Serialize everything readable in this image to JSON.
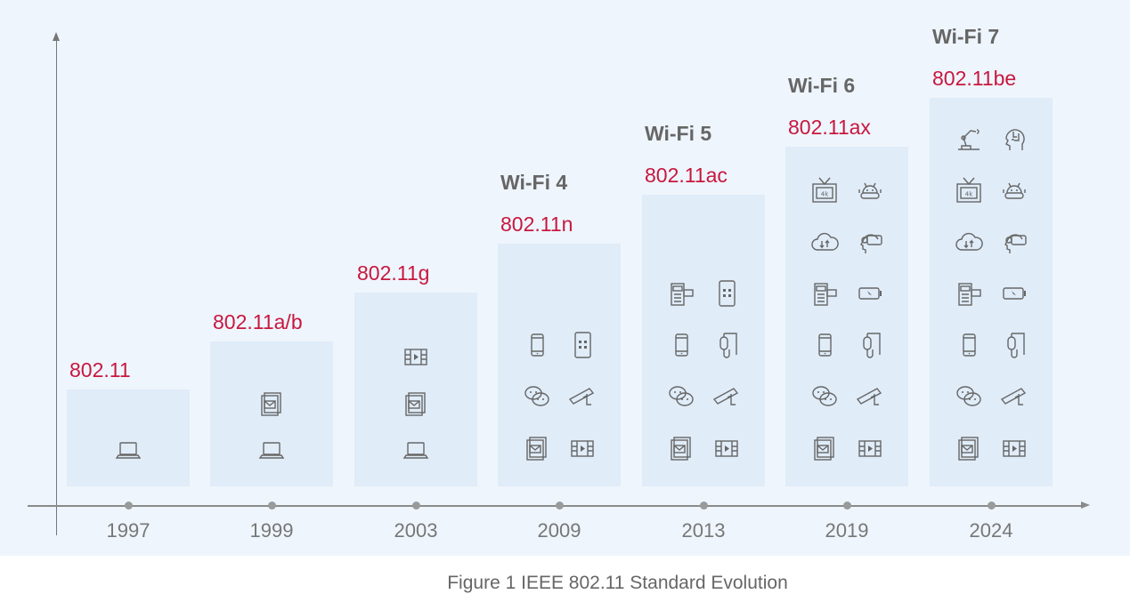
{
  "colors": {
    "background": "#eef5fc",
    "box": "#e0ecf8",
    "standard": "#c8173f",
    "wifi_label": "#666666",
    "axis": "#8a8a8a"
  },
  "columns": [
    {
      "year": "1997",
      "standard": "802.11",
      "wifi": "",
      "rows": [
        [
          "laptop"
        ]
      ]
    },
    {
      "year": "1999",
      "standard": "802.11a/b",
      "wifi": "",
      "rows": [
        [
          "mail"
        ],
        [
          "laptop"
        ]
      ]
    },
    {
      "year": "2003",
      "standard": "802.11g",
      "wifi": "",
      "rows": [
        [
          "video"
        ],
        [
          "mail"
        ],
        [
          "laptop"
        ]
      ]
    },
    {
      "year": "2009",
      "standard": "802.11n",
      "wifi": "Wi-Fi 4",
      "rows": [
        [
          "phone",
          "tablet"
        ],
        [
          "chat",
          "camera"
        ],
        [
          "mail",
          "video"
        ]
      ]
    },
    {
      "year": "2013",
      "standard": "802.11ac",
      "wifi": "Wi-Fi 5",
      "rows": [
        [
          "pos",
          "tablet"
        ],
        [
          "phone",
          "iv-drip"
        ],
        [
          "chat",
          "camera"
        ],
        [
          "mail",
          "video"
        ]
      ]
    },
    {
      "year": "2019",
      "standard": "802.11ax",
      "wifi": "Wi-Fi 6",
      "rows": [
        [
          "tv-4k",
          "robot"
        ],
        [
          "cloud-sync",
          "vr-headset"
        ],
        [
          "pos",
          "battery"
        ],
        [
          "phone",
          "iv-drip"
        ],
        [
          "chat",
          "camera"
        ],
        [
          "mail",
          "video"
        ]
      ]
    },
    {
      "year": "2024",
      "standard": "802.11be",
      "wifi": "Wi-Fi 7",
      "rows": [
        [
          "robot-arm",
          "ai-head"
        ],
        [
          "tv-4k",
          "robot"
        ],
        [
          "cloud-sync",
          "vr-headset"
        ],
        [
          "pos",
          "battery"
        ],
        [
          "phone",
          "iv-drip"
        ],
        [
          "chat",
          "camera"
        ],
        [
          "mail",
          "video"
        ]
      ]
    }
  ],
  "icon_text": {
    "tv_label": "4k"
  },
  "caption": "Figure 1  IEEE 802.11 Standard Evolution"
}
